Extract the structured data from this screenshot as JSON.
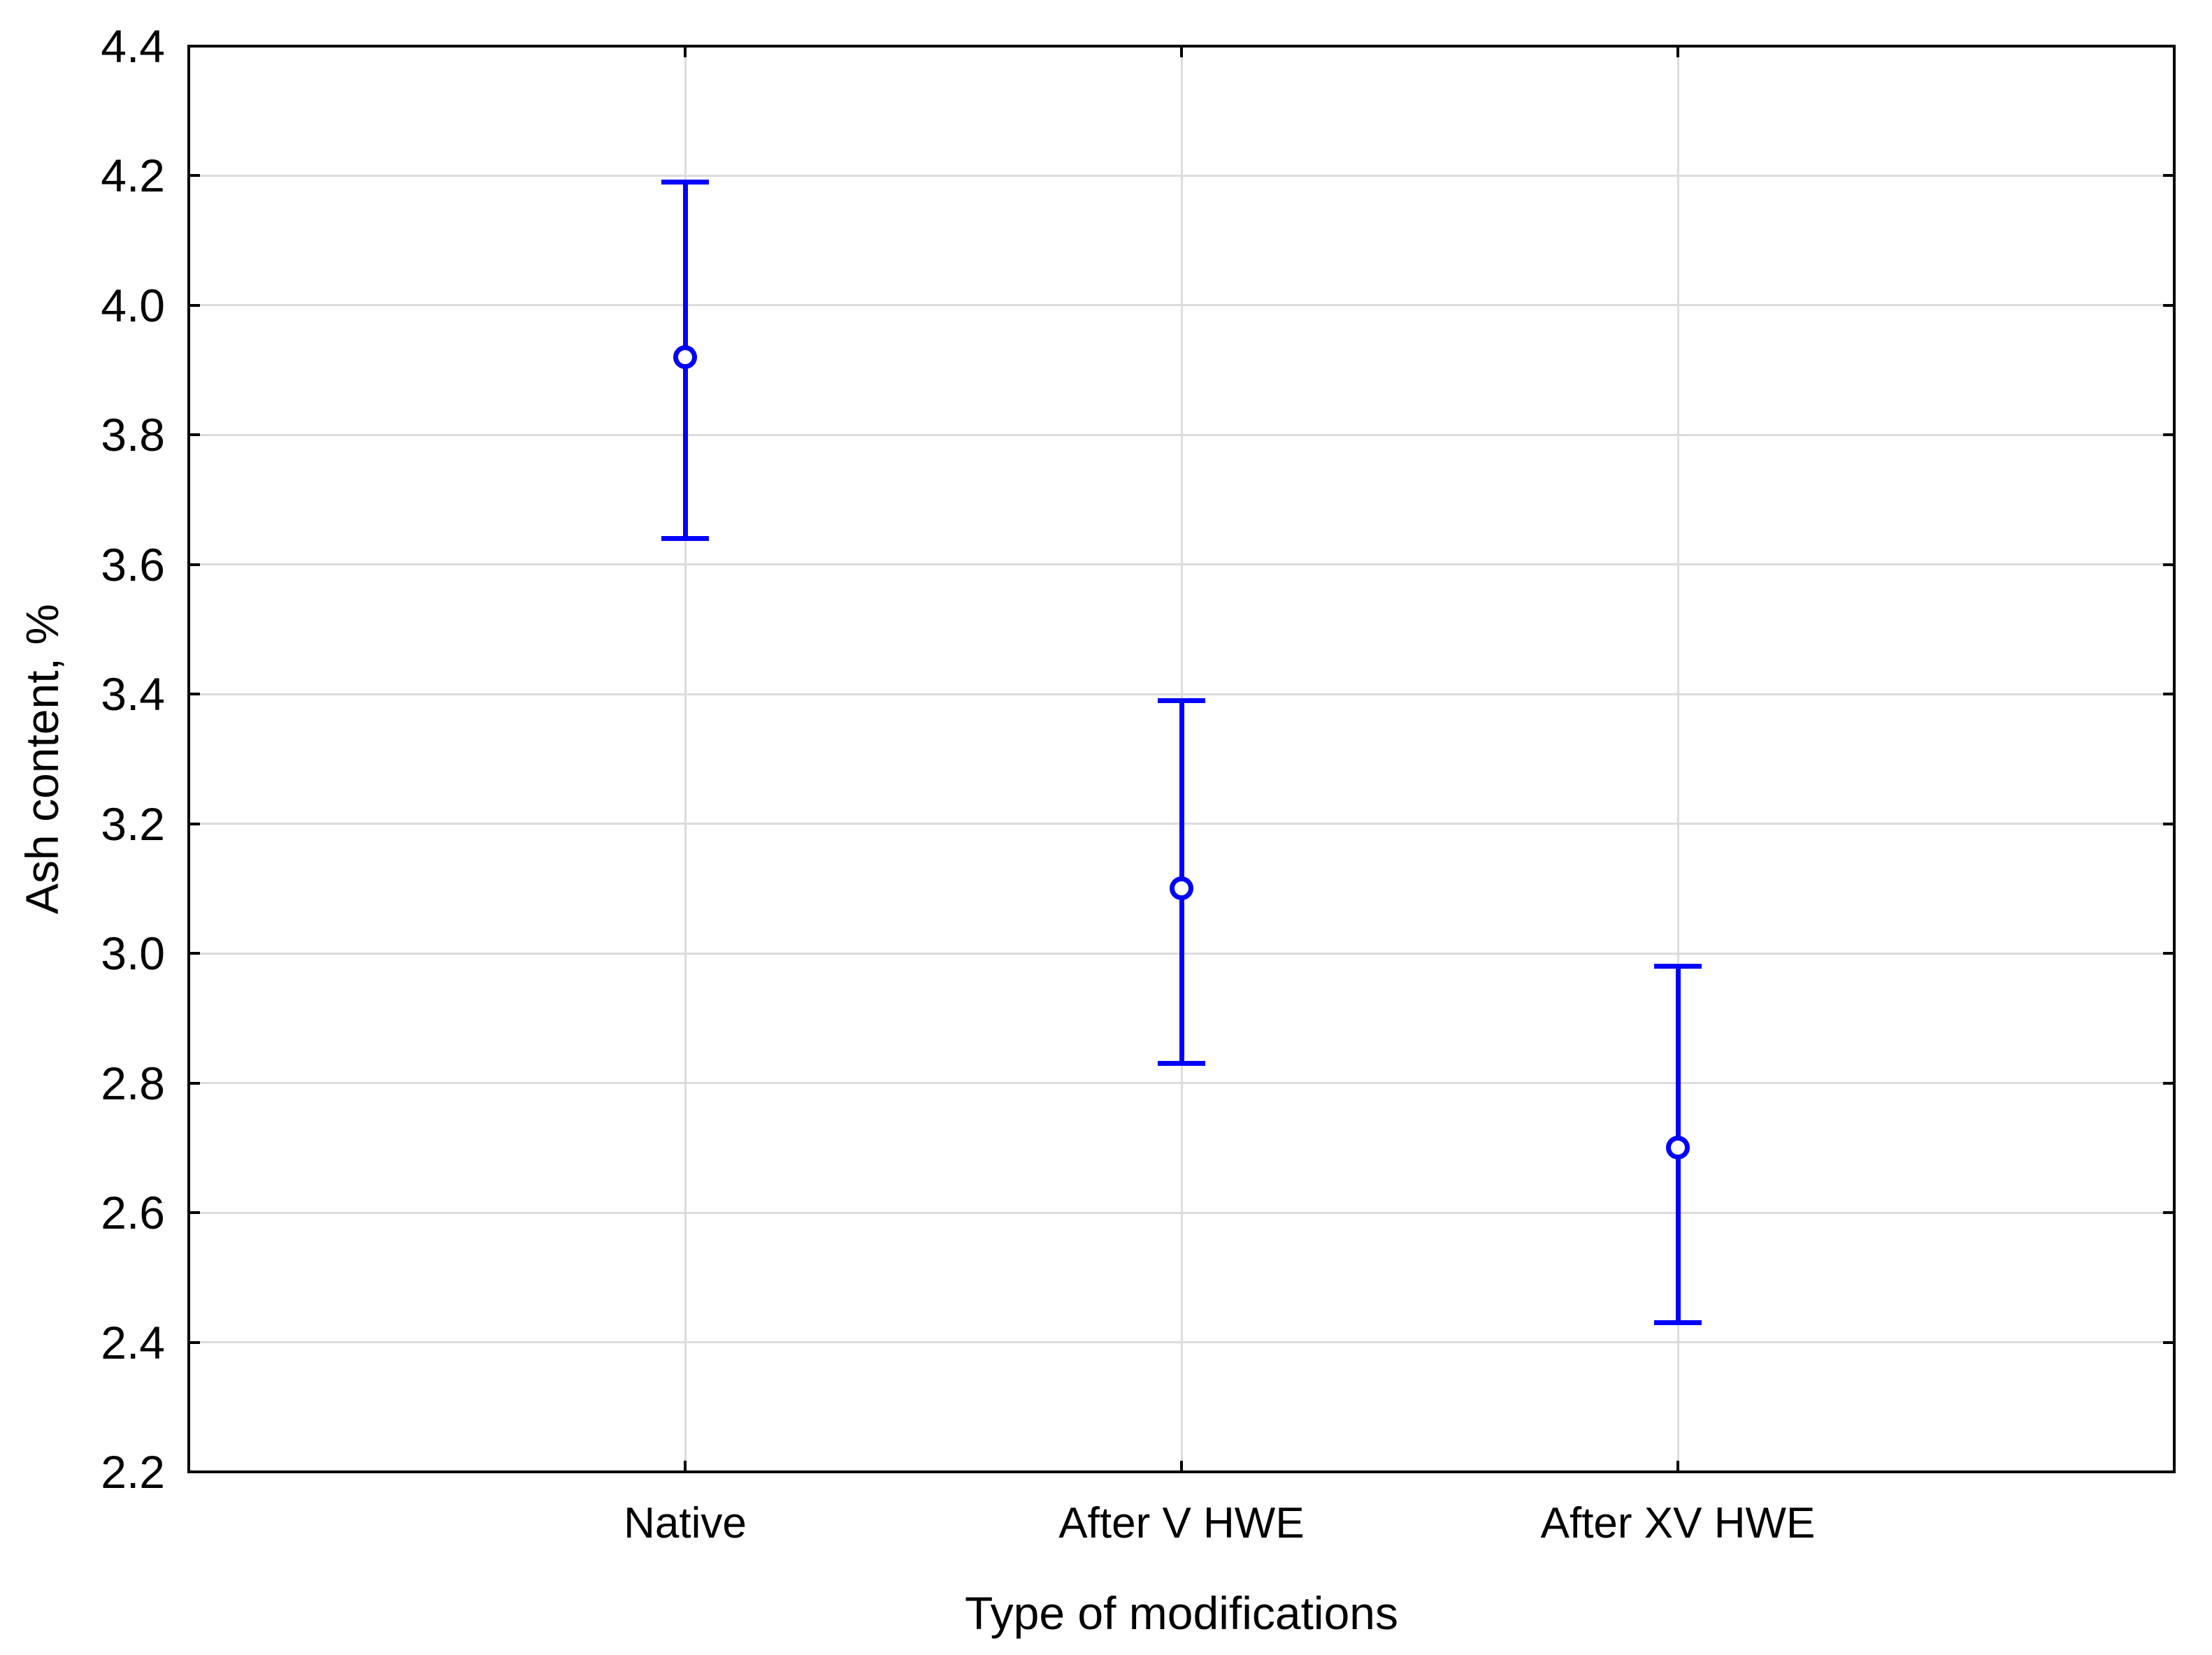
{
  "chart_data": {
    "type": "scatter",
    "subtype": "means-with-error-bars",
    "title": "",
    "xlabel": "Type of modifications",
    "ylabel": "Ash content, %",
    "categories": [
      "Native",
      "After V HWE",
      "After XV HWE"
    ],
    "series": [
      {
        "name": "Ash content, %",
        "means": [
          3.92,
          3.1,
          2.7
        ],
        "upper": [
          4.19,
          3.39,
          2.98
        ],
        "lower": [
          3.64,
          2.83,
          2.43
        ]
      }
    ],
    "ylim": [
      2.2,
      4.4
    ],
    "ytick_labels": [
      "4.4",
      "4.2",
      "4.0",
      "3.8",
      "3.6",
      "3.4",
      "3.2",
      "3.0",
      "2.8",
      "2.6",
      "2.4",
      "2.2"
    ],
    "grid": true,
    "legend": "none",
    "marker": "open-circle",
    "colors": {
      "series": "#0000ff",
      "grid": "#dcdcdc",
      "axis": "#000000",
      "text": "#000000",
      "background": "#ffffff"
    }
  }
}
